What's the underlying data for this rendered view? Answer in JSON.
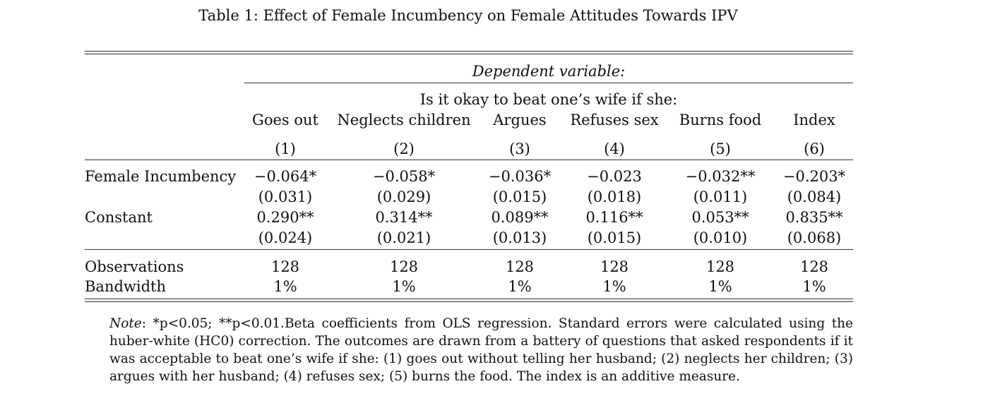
{
  "caption": "Table 1: Effect of Female Incumbency on Female Attitudes Towards IPV",
  "header": {
    "dependent_variable": "Dependent variable:",
    "question": "Is it okay to beat one’s wife if she:",
    "columns": [
      "Goes out",
      "Neglects children",
      "Argues",
      "Refuses sex",
      "Burns food",
      "Index"
    ],
    "column_numbers": [
      "(1)",
      "(2)",
      "(3)",
      "(4)",
      "(5)",
      "(6)"
    ]
  },
  "rows": {
    "female_incumbency": {
      "label": "Female Incumbency",
      "coef": [
        "−0.064*",
        "−0.058*",
        "−0.036*",
        "−0.023",
        "−0.032**",
        "−0.203*"
      ],
      "se": [
        "(0.031)",
        "(0.029)",
        "(0.015)",
        "(0.018)",
        "(0.011)",
        "(0.084)"
      ]
    },
    "constant": {
      "label": "Constant",
      "coef": [
        "0.290**",
        "0.314**",
        "0.089**",
        "0.116**",
        "0.053**",
        "0.835**"
      ],
      "se": [
        "(0.024)",
        "(0.021)",
        "(0.013)",
        "(0.015)",
        "(0.010)",
        "(0.068)"
      ]
    },
    "observations": {
      "label": "Observations",
      "values": [
        "128",
        "128",
        "128",
        "128",
        "128",
        "128"
      ]
    },
    "bandwidth": {
      "label": "Bandwidth",
      "values": [
        "1%",
        "1%",
        "1%",
        "1%",
        "1%",
        "1%"
      ]
    }
  },
  "note": {
    "label": "Note",
    "text": ": *p<0.05; **p<0.01.Beta coefficients from OLS regression. Standard errors were calculated using the huber-white (HC0) correction. The outcomes are drawn from a battery of questions that asked respondents if it was acceptable to beat one’s wife if she: (1) goes out without telling her husband; (2) neglects her children; (3) argues with her husband; (4) refuses sex; (5) burns the food. The index is an additive measure."
  }
}
